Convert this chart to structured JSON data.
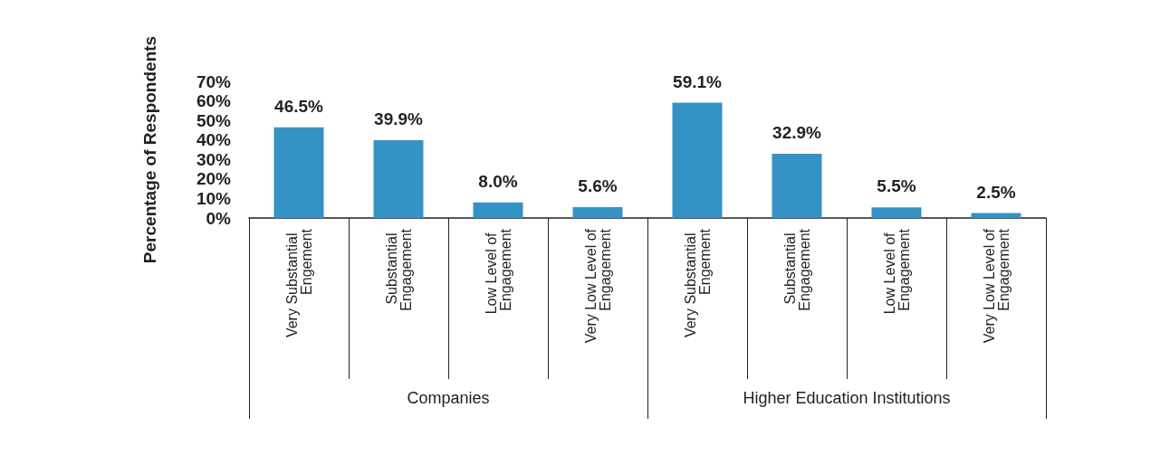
{
  "chart_data": {
    "type": "bar",
    "ylabel": "Percentage of Respondents",
    "categories": [
      "Very Substantial Engement",
      "Substantial Engagement",
      "Low Level of Engagement",
      "Very Low Level of Engagement",
      "Very Substantial Engement",
      "Substantial Engagement",
      "Low Level of Engagement",
      "Very Low Level of Engagement"
    ],
    "values": [
      46.5,
      39.9,
      8.0,
      5.6,
      59.1,
      32.9,
      5.5,
      2.5
    ],
    "value_labels": [
      "46.5%",
      "39.9%",
      "8.0%",
      "5.6%",
      "59.1%",
      "32.9%",
      "5.5%",
      "2.5%"
    ],
    "color": "#3592c4",
    "ylim": [
      0,
      70
    ],
    "yticks": [
      {
        "value": 0,
        "label": "0%"
      },
      {
        "value": 10,
        "label": "10%"
      },
      {
        "value": 20,
        "label": "20%"
      },
      {
        "value": 30,
        "label": "30%"
      },
      {
        "value": 40,
        "label": "40%"
      },
      {
        "value": 50,
        "label": "50%"
      },
      {
        "value": 60,
        "label": "60%"
      },
      {
        "value": 70,
        "label": "70%"
      }
    ],
    "annotations": [
      "Companies",
      "Higher Education Institutions"
    ]
  }
}
